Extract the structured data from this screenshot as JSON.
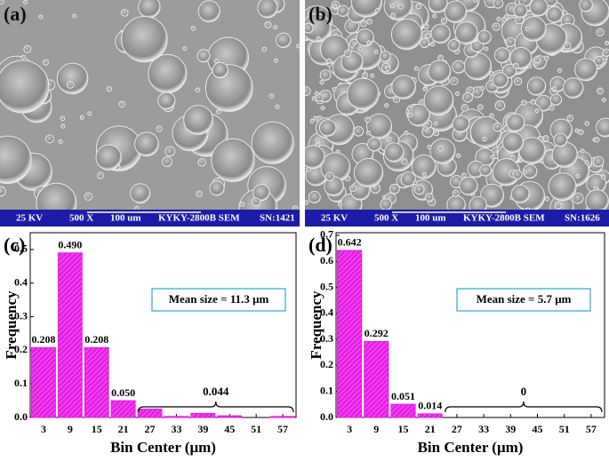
{
  "panels": [
    {
      "label": "(a)",
      "info": [
        "25 KV",
        "500 X",
        "100 um",
        "KYKY-2800B SEM",
        "SN:1421"
      ]
    },
    {
      "label": "(b)",
      "info": [
        "25 KV",
        "500 X",
        "100 um",
        "KYKY-2800B SEM",
        "SN:1626"
      ]
    }
  ],
  "chart_data": [
    {
      "type": "bar",
      "panel_label": "(c)",
      "x_label": "Bin Center (μm)",
      "y_label": "Frequency",
      "categories": [
        "3",
        "9",
        "15",
        "21",
        "27",
        "33",
        "39",
        "45",
        "51",
        "57"
      ],
      "values": [
        0.208,
        0.49,
        0.208,
        0.05,
        0.025,
        0.003,
        0.012,
        0.005,
        0,
        0.003
      ],
      "value_labels": [
        "0.208",
        "0.490",
        "0.208",
        "0.050",
        null,
        null,
        null,
        null,
        null,
        null
      ],
      "color": "#e61ee6",
      "ylim": [
        0,
        0.55
      ],
      "yticks": [
        {
          "value": 0,
          "label": "0.0"
        },
        0.1,
        0.2,
        0.3,
        0.4,
        0.5
      ],
      "annotation": "0.044",
      "legend_text": "Mean size = 11.3 μm"
    },
    {
      "type": "bar",
      "panel_label": "(d)",
      "x_label": "Bin Center (μm)",
      "y_label": "Frequency",
      "categories": [
        "3",
        "9",
        "15",
        "21",
        "27",
        "33",
        "39",
        "45",
        "51",
        "57"
      ],
      "values": [
        0.642,
        0.292,
        0.051,
        0.014,
        0,
        0,
        0,
        0,
        0,
        0
      ],
      "value_labels": [
        "0.642",
        "0.292",
        "0.051",
        "0.014",
        null,
        null,
        null,
        null,
        null,
        null
      ],
      "color": "#e61ee6",
      "ylim": [
        0,
        0.71
      ],
      "yticks": [
        {
          "value": 0,
          "label": "0.0"
        },
        0.1,
        0.2,
        0.3,
        0.4,
        0.5,
        0.6,
        0.7
      ],
      "annotation": "0",
      "legend_text": "Mean size = 5.7 μm"
    }
  ]
}
